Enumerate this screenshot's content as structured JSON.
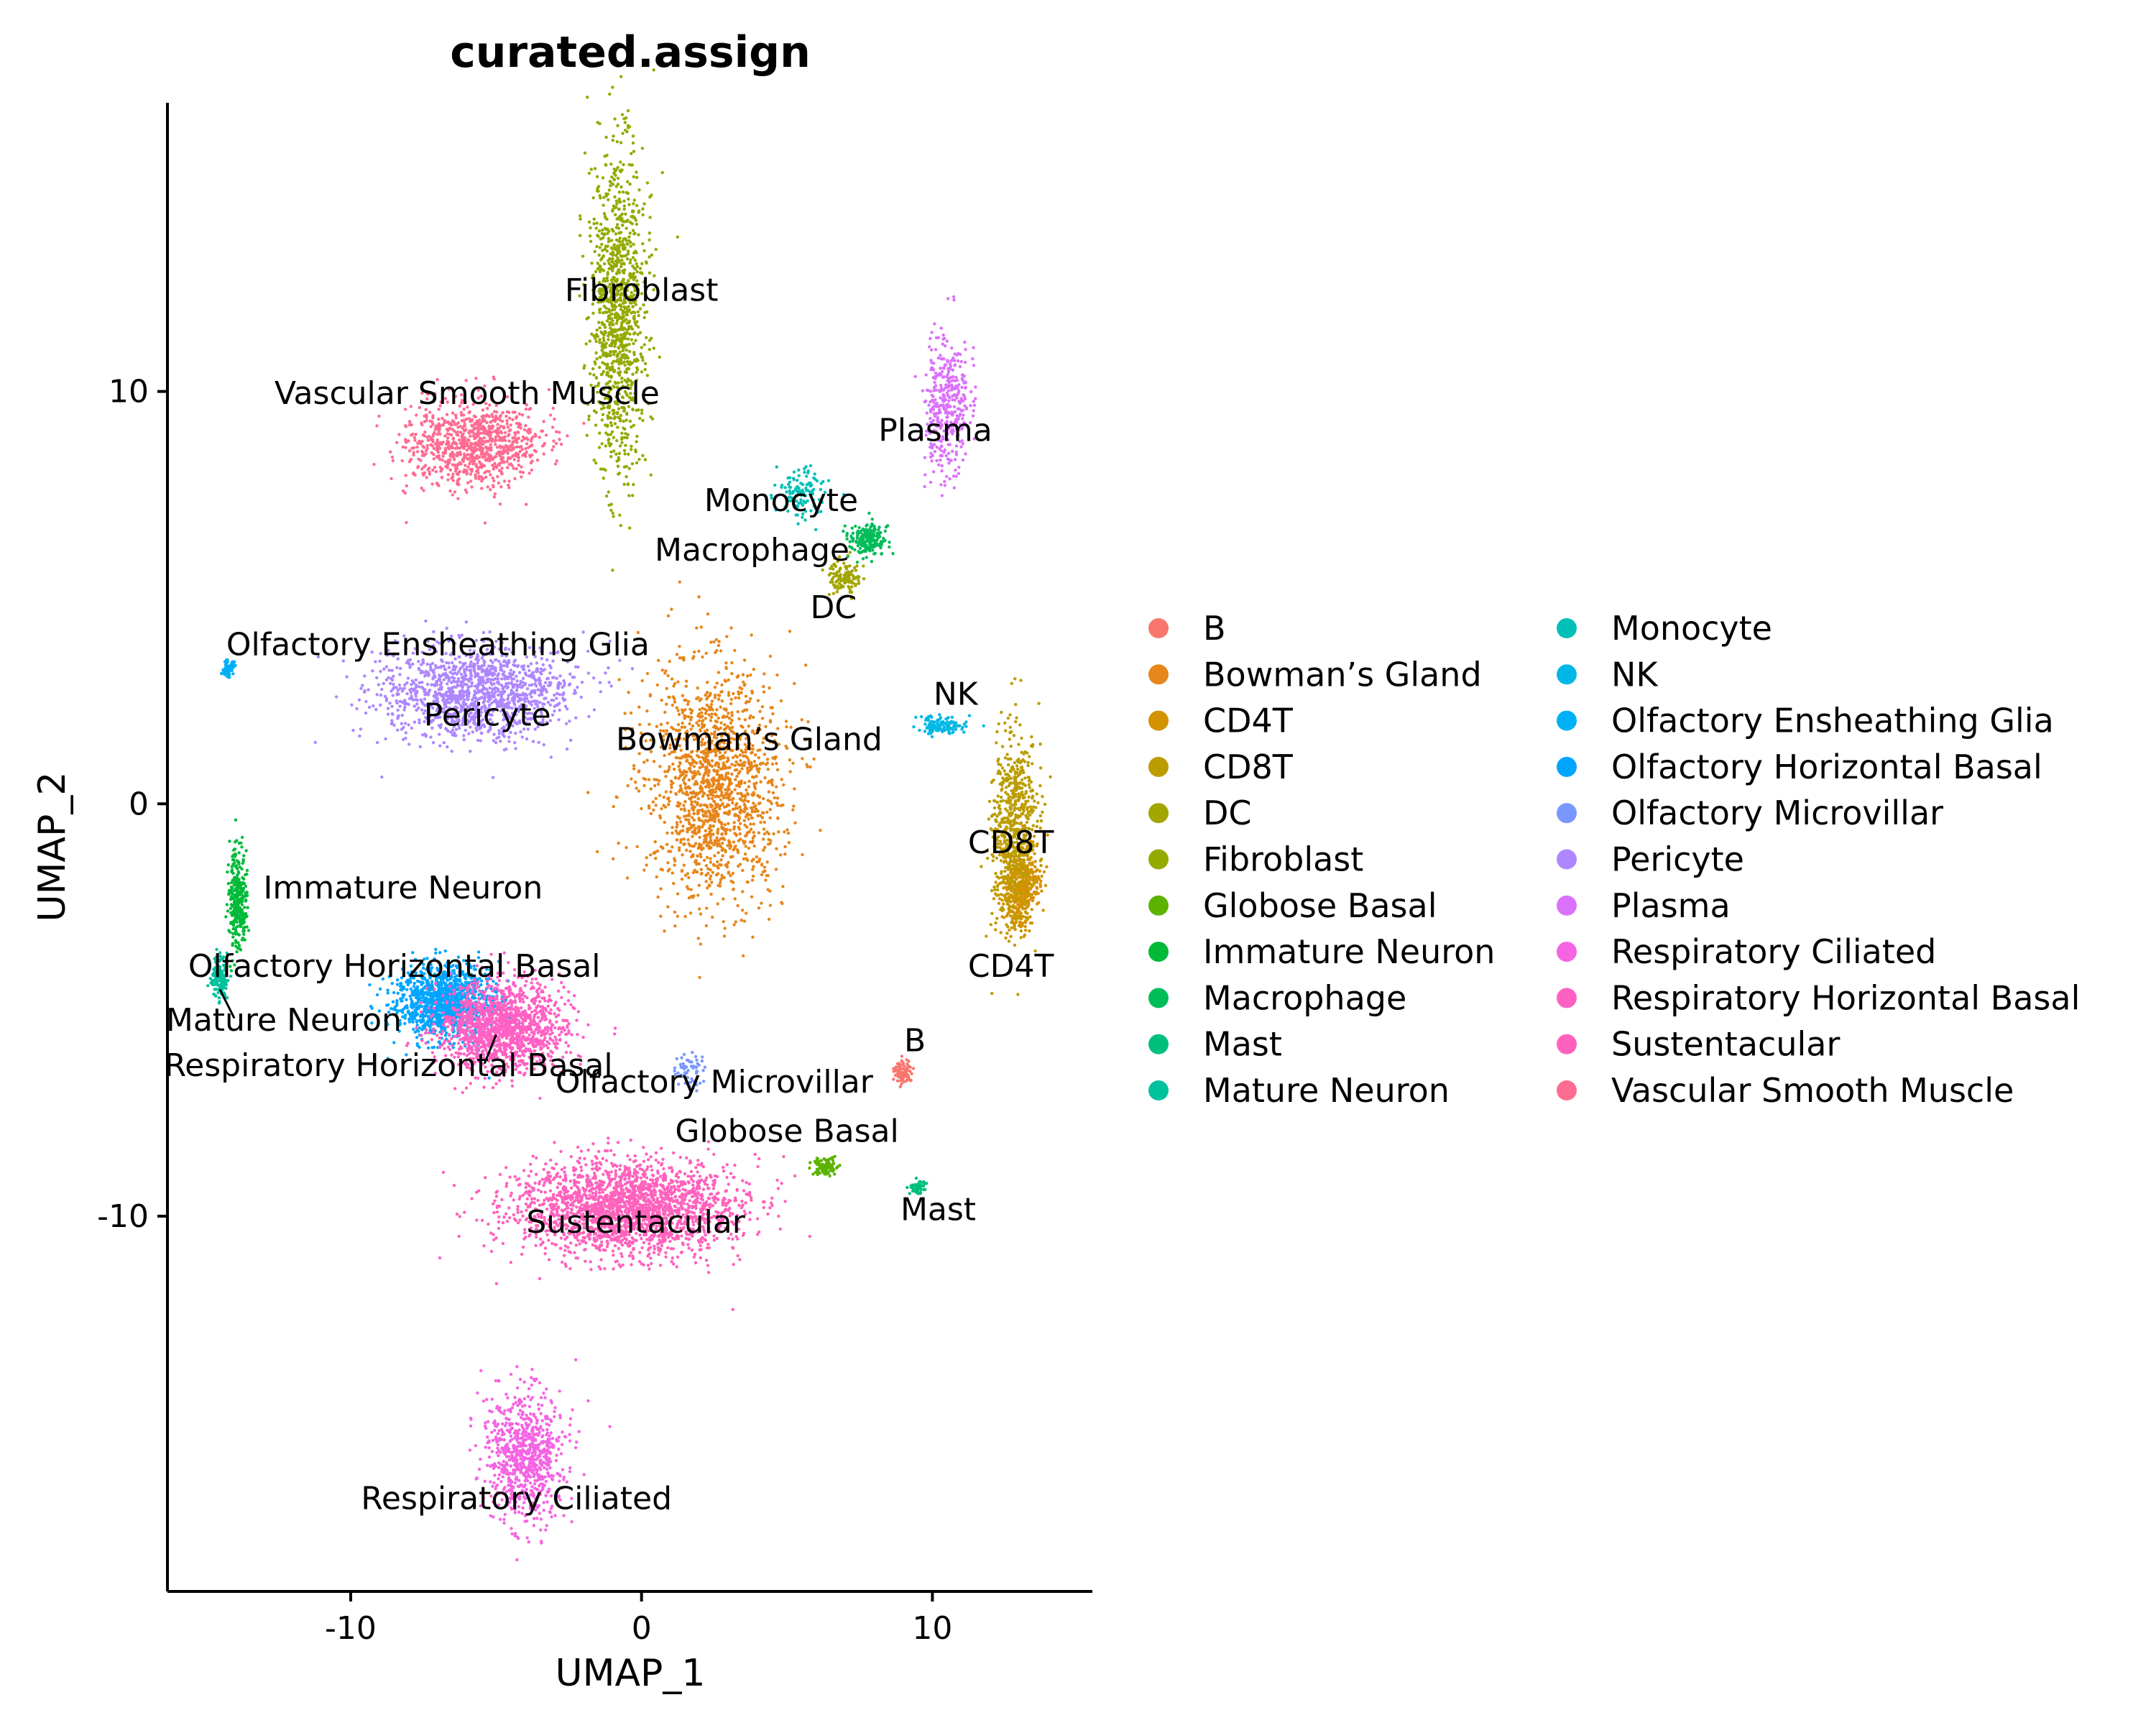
{
  "chart_data": {
    "type": "scatter",
    "title": "curated.assign",
    "xlabel": "UMAP_1",
    "ylabel": "UMAP_2",
    "xlim": [
      -16.3,
      15.5
    ],
    "ylim": [
      -19.1,
      17.0
    ],
    "x_ticks": [
      -10,
      0,
      10
    ],
    "y_ticks": [
      -10,
      0,
      10
    ],
    "x_tick_labels": [
      "-10",
      "0",
      "10"
    ],
    "y_tick_labels": [
      "-10",
      "0",
      "10"
    ],
    "grid": false,
    "legend_position": "right",
    "legend_columns": 2,
    "clusters": [
      {
        "name": "B",
        "color": "#F8766D"
      },
      {
        "name": "Bowman’s Gland",
        "color": "#E7861B"
      },
      {
        "name": "CD4T",
        "color": "#D39200"
      },
      {
        "name": "CD8T",
        "color": "#BB9D00"
      },
      {
        "name": "DC",
        "color": "#A3A500"
      },
      {
        "name": "Fibroblast",
        "color": "#93AA00"
      },
      {
        "name": "Globose Basal",
        "color": "#5BB300"
      },
      {
        "name": "Immature Neuron",
        "color": "#00BA38"
      },
      {
        "name": "Macrophage",
        "color": "#00BC59"
      },
      {
        "name": "Mast",
        "color": "#00BF7D"
      },
      {
        "name": "Mature Neuron",
        "color": "#00C19C"
      },
      {
        "name": "Monocyte",
        "color": "#00C0B8"
      },
      {
        "name": "NK",
        "color": "#00B8E5"
      },
      {
        "name": "Olfactory Ensheathing Glia",
        "color": "#00B0F6"
      },
      {
        "name": "Olfactory Horizontal Basal",
        "color": "#00A5FF"
      },
      {
        "name": "Olfactory Microvillar",
        "color": "#7997FF"
      },
      {
        "name": "Pericyte",
        "color": "#AE87FF"
      },
      {
        "name": "Plasma",
        "color": "#DB72FB"
      },
      {
        "name": "Respiratory Ciliated",
        "color": "#F564E3"
      },
      {
        "name": "Respiratory Horizontal Basal",
        "color": "#FF61C3"
      },
      {
        "name": "Sustentacular",
        "color": "#FF62BC"
      },
      {
        "name": "Vascular Smooth Muscle",
        "color": "#FF6C91"
      }
    ],
    "cluster_centers": [
      {
        "name": "B",
        "x": 9.0,
        "y": -6.5
      },
      {
        "name": "Bowman’s Gland",
        "x": 2.5,
        "y": 0.5
      },
      {
        "name": "CD4T",
        "x": 13.0,
        "y": -2.0
      },
      {
        "name": "CD8T",
        "x": 12.8,
        "y": -0.5
      },
      {
        "name": "DC",
        "x": 7.0,
        "y": 5.5
      },
      {
        "name": "Fibroblast",
        "x": -0.8,
        "y": 12.0
      },
      {
        "name": "Globose Basal",
        "x": 6.3,
        "y": -8.8
      },
      {
        "name": "Immature Neuron",
        "x": -13.9,
        "y": -2.3
      },
      {
        "name": "Macrophage",
        "x": 7.8,
        "y": 6.4
      },
      {
        "name": "Mast",
        "x": 9.5,
        "y": -9.3
      },
      {
        "name": "Mature Neuron",
        "x": -14.5,
        "y": -4.2
      },
      {
        "name": "Monocyte",
        "x": 5.5,
        "y": 7.6
      },
      {
        "name": "NK",
        "x": 10.3,
        "y": 1.9
      },
      {
        "name": "Olfactory Ensheathing Glia",
        "x": -14.2,
        "y": 3.3
      },
      {
        "name": "Olfactory Horizontal Basal",
        "x": -6.8,
        "y": -4.8
      },
      {
        "name": "Olfactory Microvillar",
        "x": 1.7,
        "y": -6.5
      },
      {
        "name": "Pericyte",
        "x": -5.7,
        "y": 2.7
      },
      {
        "name": "Plasma",
        "x": 10.5,
        "y": 9.6
      },
      {
        "name": "Respiratory Ciliated",
        "x": -4.0,
        "y": -15.8
      },
      {
        "name": "Respiratory Horizontal Basal",
        "x": -4.8,
        "y": -5.4
      },
      {
        "name": "Sustentacular",
        "x": -0.5,
        "y": -9.8
      },
      {
        "name": "Vascular Smooth Muscle",
        "x": -5.8,
        "y": 8.7
      }
    ],
    "point_labels": [
      {
        "text": "Fibroblast",
        "x": 0.0,
        "y": 12.2
      },
      {
        "text": "Vascular Smooth Muscle",
        "x": -6.0,
        "y": 9.7
      },
      {
        "text": "Plasma",
        "x": 10.1,
        "y": 8.8
      },
      {
        "text": "Monocyte",
        "x": 4.8,
        "y": 7.1
      },
      {
        "text": "Macrophage",
        "x": 3.8,
        "y": 5.9
      },
      {
        "text": "DC",
        "x": 6.6,
        "y": 4.5
      },
      {
        "text": "Olfactory Ensheathing Glia",
        "x": -7.0,
        "y": 3.6
      },
      {
        "text": "Pericyte",
        "x": -5.3,
        "y": 1.9
      },
      {
        "text": "Bowman’s Gland",
        "x": 3.7,
        "y": 1.3
      },
      {
        "text": "NK",
        "x": 10.8,
        "y": 2.4
      },
      {
        "text": "CD8T",
        "x": 12.7,
        "y": -1.2
      },
      {
        "text": "Immature Neuron",
        "x": -8.2,
        "y": -2.3
      },
      {
        "text": "Olfactory Horizontal Basal",
        "x": -8.5,
        "y": -4.2
      },
      {
        "text": "CD4T",
        "x": 12.7,
        "y": -4.2
      },
      {
        "text": "Mature Neuron",
        "x": -12.3,
        "y": -5.5
      },
      {
        "text": "Respiratory Horizontal Basal",
        "x": -8.7,
        "y": -6.6
      },
      {
        "text": "B",
        "x": 9.4,
        "y": -6.0
      },
      {
        "text": "Olfactory Microvillar",
        "x": 2.5,
        "y": -7.0
      },
      {
        "text": "Globose Basal",
        "x": 5.0,
        "y": -8.2
      },
      {
        "text": "Mast",
        "x": 10.2,
        "y": -10.1
      },
      {
        "text": "Sustentacular",
        "x": -0.2,
        "y": -10.4
      },
      {
        "text": "Respiratory Ciliated",
        "x": -4.3,
        "y": -17.1
      }
    ],
    "label_connectors": [
      {
        "from": [
          -14.5,
          -4.5
        ],
        "to": [
          -14.0,
          -5.2
        ]
      },
      {
        "from": [
          -5.0,
          -5.6
        ],
        "to": [
          -5.4,
          -6.3
        ]
      }
    ]
  }
}
